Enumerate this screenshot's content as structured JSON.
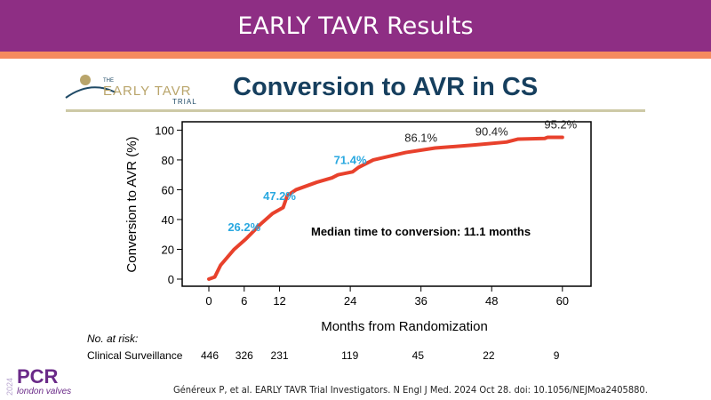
{
  "header": {
    "title": "EARLY TAVR Results"
  },
  "logo": {
    "text_small": "THE",
    "text_main": "EARLY TAVR",
    "text_sub": "TRIAL"
  },
  "slide_title": "Conversion to AVR in CS",
  "chart_data": {
    "type": "line",
    "ylabel": "Conversion to AVR (%)",
    "xlabel": "Months from Randomization",
    "xlim": [
      0,
      60
    ],
    "ylim": [
      0,
      100
    ],
    "xticks": [
      0,
      6,
      12,
      24,
      36,
      48,
      60
    ],
    "yticks": [
      0,
      20,
      40,
      60,
      80,
      100
    ],
    "grid": false,
    "color": "#e8412c",
    "series": [
      {
        "x": [
          0,
          1,
          2,
          4.3,
          6.3,
          8.8,
          10.8,
          12.6,
          13.3,
          14.8,
          18.3,
          20.9,
          21.9,
          24.4,
          25.4,
          27.9,
          33.4,
          38.4,
          45,
          50.5,
          52.5,
          57,
          57.5,
          60
        ],
        "y": [
          0,
          1.4,
          9.4,
          20,
          27,
          37,
          44,
          48,
          56,
          60,
          65,
          68,
          70,
          72,
          75,
          80,
          85,
          88,
          90,
          92,
          94,
          94.4,
          95.2,
          95.2
        ]
      }
    ],
    "annotations": [
      {
        "text": "26.2%",
        "x": 6,
        "color": "#29a8e0"
      },
      {
        "text": "47.2%",
        "x": 12,
        "color": "#29a8e0"
      },
      {
        "text": "71.4%",
        "x": 24,
        "color": "#29a8e0"
      },
      {
        "text": "86.1%",
        "x": 36,
        "color": "#222222"
      },
      {
        "text": "90.4%",
        "x": 48,
        "color": "#222222"
      },
      {
        "text": "95.2%",
        "x": 60,
        "color": "#222222"
      }
    ],
    "note": "Median time to conversion: 11.1 months"
  },
  "at_risk": {
    "heading": "No. at risk:",
    "label": "Clinical Surveillance",
    "months": [
      0,
      6,
      12,
      24,
      36,
      48,
      60
    ],
    "values": [
      "446",
      "326",
      "231",
      "119",
      "45",
      "22",
      "9"
    ]
  },
  "footer": {
    "citation": "Généreux P, et al. EARLY TAVR Trial Investigators. N Engl J Med. 2024 Oct 28. doi: 10.1056/NEJMoa2405880.",
    "pcr_year": "2024",
    "pcr_brand": "PCR",
    "pcr_sub": "london valves"
  }
}
